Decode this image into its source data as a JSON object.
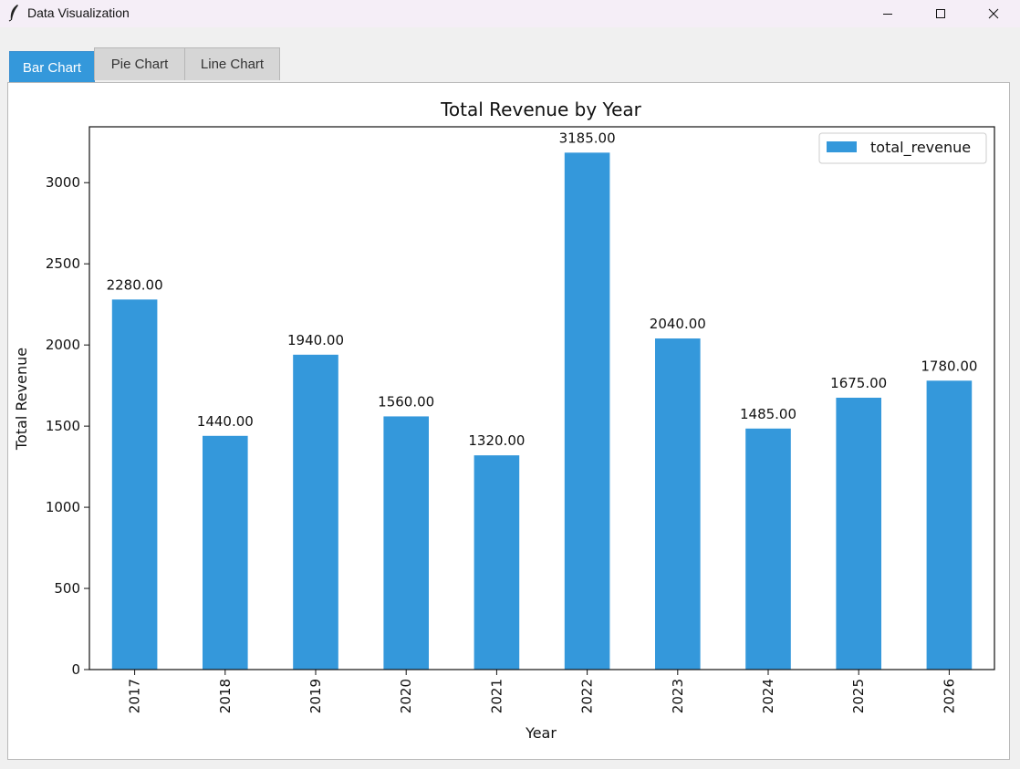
{
  "window": {
    "title": "Data Visualization"
  },
  "tabs": [
    {
      "label": "Bar Chart",
      "active": true
    },
    {
      "label": "Pie Chart",
      "active": false
    },
    {
      "label": "Line Chart",
      "active": false
    }
  ],
  "colors": {
    "bar": "#3498db",
    "tab_active": "#3498db"
  },
  "chart_data": {
    "type": "bar",
    "title": "Total Revenue by Year",
    "xlabel": "Year",
    "ylabel": "Total Revenue",
    "categories": [
      "2017",
      "2018",
      "2019",
      "2020",
      "2021",
      "2022",
      "2023",
      "2024",
      "2025",
      "2026"
    ],
    "series": [
      {
        "name": "total_revenue",
        "values": [
          2280,
          1440,
          1940,
          1560,
          1320,
          3185,
          2040,
          1485,
          1675,
          1780
        ]
      }
    ],
    "data_labels": [
      "2280.00",
      "1440.00",
      "1940.00",
      "1560.00",
      "1320.00",
      "3185.00",
      "2040.00",
      "1485.00",
      "1675.00",
      "1780.00"
    ],
    "yticks": [
      0,
      500,
      1000,
      1500,
      2000,
      2500,
      3000
    ],
    "ylim": [
      0,
      3344.25
    ],
    "xtick_rotation": "vertical",
    "legend": "top-right",
    "grid": false
  }
}
